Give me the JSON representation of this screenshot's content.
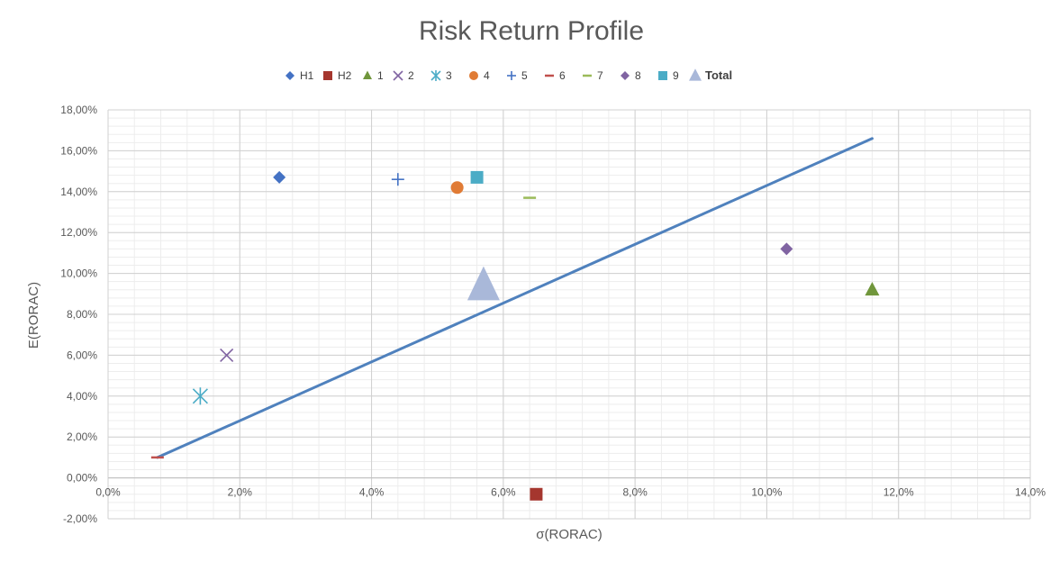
{
  "chart_data": {
    "type": "scatter",
    "title": "Risk Return Profile",
    "xlabel": "σ(RORAC)",
    "ylabel": "E(RORAC)",
    "xlim": [
      0.0,
      0.14
    ],
    "ylim": [
      -0.02,
      0.18
    ],
    "x_ticks": [
      0.0,
      0.02,
      0.04,
      0.06,
      0.08,
      0.1,
      0.12,
      0.14
    ],
    "x_tick_labels": [
      "0,0%",
      "2,0%",
      "4,0%",
      "6,0%",
      "8,0%",
      "10,0%",
      "12,0%",
      "14,0%"
    ],
    "y_ticks": [
      -0.02,
      0.0,
      0.02,
      0.04,
      0.06,
      0.08,
      0.1,
      0.12,
      0.14,
      0.16,
      0.18
    ],
    "y_tick_labels": [
      "-2,00%",
      "0,00%",
      "2,00%",
      "4,00%",
      "6,00%",
      "8,00%",
      "10,00%",
      "12,00%",
      "14,00%",
      "16,00%",
      "18,00%"
    ],
    "grid": true,
    "legend_position": "top",
    "series": [
      {
        "name": "H1",
        "marker": "diamond",
        "color": "#4472C4",
        "x": 0.026,
        "y": 0.147
      },
      {
        "name": "H2",
        "marker": "square",
        "color": "#A5362E",
        "x": 0.065,
        "y": -0.008
      },
      {
        "name": "1",
        "marker": "triangle",
        "color": "#70963B",
        "x": 0.116,
        "y": 0.092
      },
      {
        "name": "2",
        "marker": "x",
        "color": "#8064A2",
        "x": 0.018,
        "y": 0.06
      },
      {
        "name": "3",
        "marker": "asterisk",
        "color": "#4BACC6",
        "x": 0.014,
        "y": 0.04
      },
      {
        "name": "4",
        "marker": "circle",
        "color": "#E07B35",
        "x": 0.053,
        "y": 0.142
      },
      {
        "name": "5",
        "marker": "plus",
        "color": "#4472C4",
        "x": 0.044,
        "y": 0.146
      },
      {
        "name": "6",
        "marker": "dash",
        "color": "#C0504D",
        "x": 0.0075,
        "y": 0.01
      },
      {
        "name": "7",
        "marker": "dash",
        "color": "#9BBB59",
        "x": 0.064,
        "y": 0.137
      },
      {
        "name": "8",
        "marker": "diamond",
        "color": "#8064A2",
        "x": 0.103,
        "y": 0.112
      },
      {
        "name": "9",
        "marker": "square",
        "color": "#4BACC6",
        "x": 0.056,
        "y": 0.147
      },
      {
        "name": "Total",
        "marker": "triangle-large",
        "color": "#A9B8D9",
        "x": 0.057,
        "y": 0.094
      }
    ],
    "line": {
      "color": "#4F81BD",
      "x": [
        0.0075,
        0.116
      ],
      "y": [
        0.01,
        0.166
      ]
    }
  }
}
